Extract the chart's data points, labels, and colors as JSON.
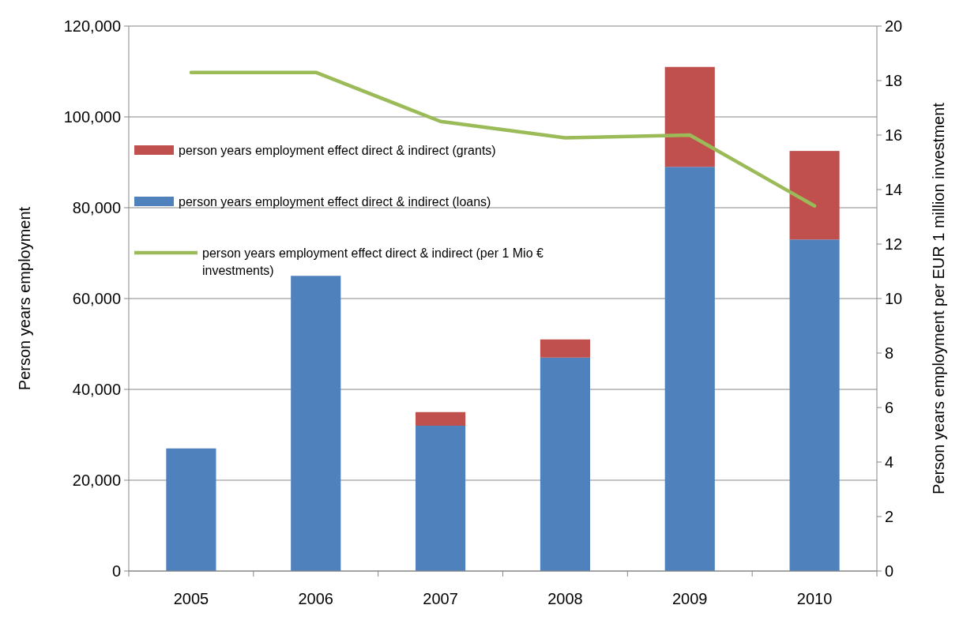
{
  "chart_data": {
    "type": "bar",
    "stacked": true,
    "categories": [
      "2005",
      "2006",
      "2007",
      "2008",
      "2009",
      "2010"
    ],
    "ylabel": "Person years employment",
    "y2label": "Person years employment per EUR 1 million investment",
    "ylim": [
      0,
      120000
    ],
    "yticks": [
      {
        "value": 0,
        "label": "0"
      },
      {
        "value": 20000,
        "label": "20,000"
      },
      {
        "value": 40000,
        "label": "40,000"
      },
      {
        "value": 60000,
        "label": "60,000"
      },
      {
        "value": 80000,
        "label": "80,000"
      },
      {
        "value": 100000,
        "label": "100,000"
      },
      {
        "value": 120000,
        "label": "120,000"
      }
    ],
    "y2lim": [
      0,
      20
    ],
    "y2ticks": [
      0,
      2,
      4,
      6,
      8,
      10,
      12,
      14,
      16,
      18,
      20
    ],
    "grid": "y",
    "legend": "top left",
    "series": [
      {
        "name": "person years employment effect direct & indirect (loans)",
        "color": "#4f81bd",
        "values": [
          27000,
          65000,
          32000,
          47000,
          89000,
          73000
        ]
      },
      {
        "name": "person years employment effect direct & indirect (grants)",
        "color": "#c0504d",
        "values": [
          0,
          0,
          3000,
          4000,
          22000,
          19500
        ]
      },
      {
        "name": "person years employment effect direct & indirect (per 1 Mio € investments)",
        "type": "line",
        "axis": "y2",
        "color": "#9bbb59",
        "line_style": "solid",
        "values": [
          18.3,
          18.3,
          16.5,
          15.9,
          16.0,
          13.4
        ]
      }
    ]
  }
}
